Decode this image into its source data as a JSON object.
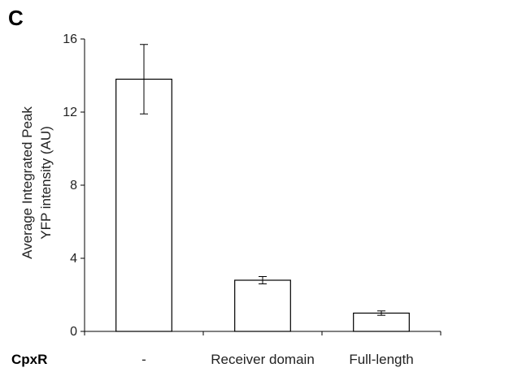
{
  "panel_label": "C",
  "chart_data": {
    "type": "bar",
    "row_label": "CpxR",
    "categories": [
      "-",
      "Receiver domain",
      "Full-length"
    ],
    "values": [
      13.8,
      2.8,
      1.0
    ],
    "errors": [
      1.9,
      0.2,
      0.12
    ],
    "ylabel": [
      "Average Integrated Peak",
      "YFP intensity (AU)"
    ],
    "ylim": [
      0,
      16
    ],
    "yticks": [
      0,
      4,
      8,
      12,
      16
    ],
    "grid": false,
    "bar_color": "#ffffff",
    "line_color": "#000000"
  }
}
